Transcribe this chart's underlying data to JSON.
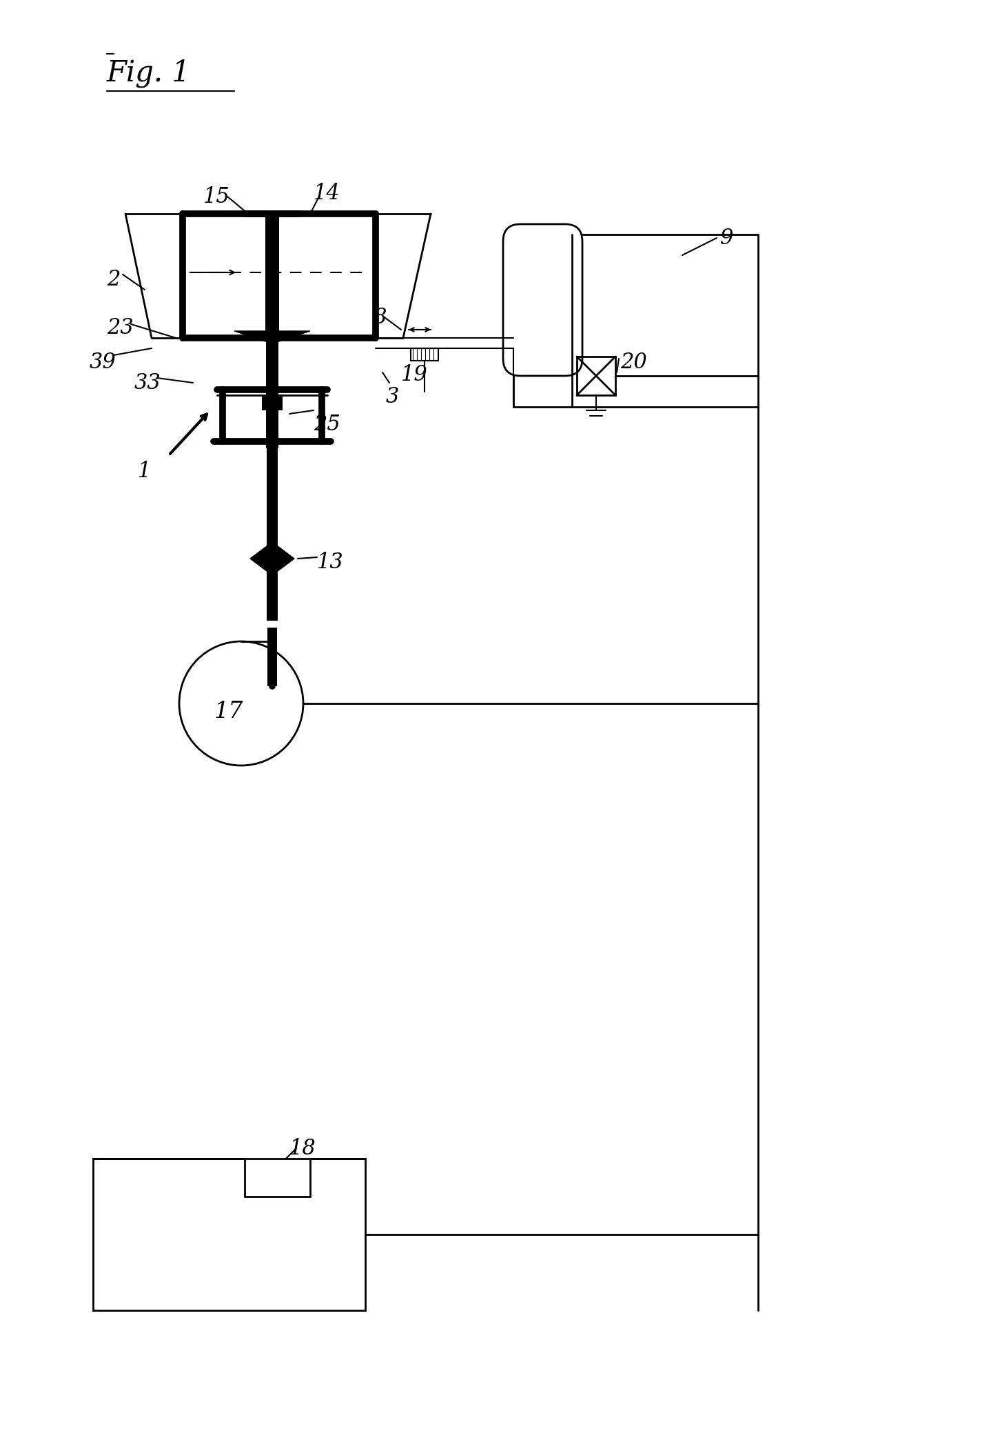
{
  "bg_color": "#ffffff",
  "line_color": "#000000",
  "fig_width": 14.38,
  "fig_height": 20.88,
  "dpi": 100,
  "xlim": [
    0,
    1438
  ],
  "ylim": [
    0,
    2088
  ],
  "lw_thick": 7,
  "lw_med": 3,
  "lw_thin": 2,
  "lw_verythin": 1.5
}
